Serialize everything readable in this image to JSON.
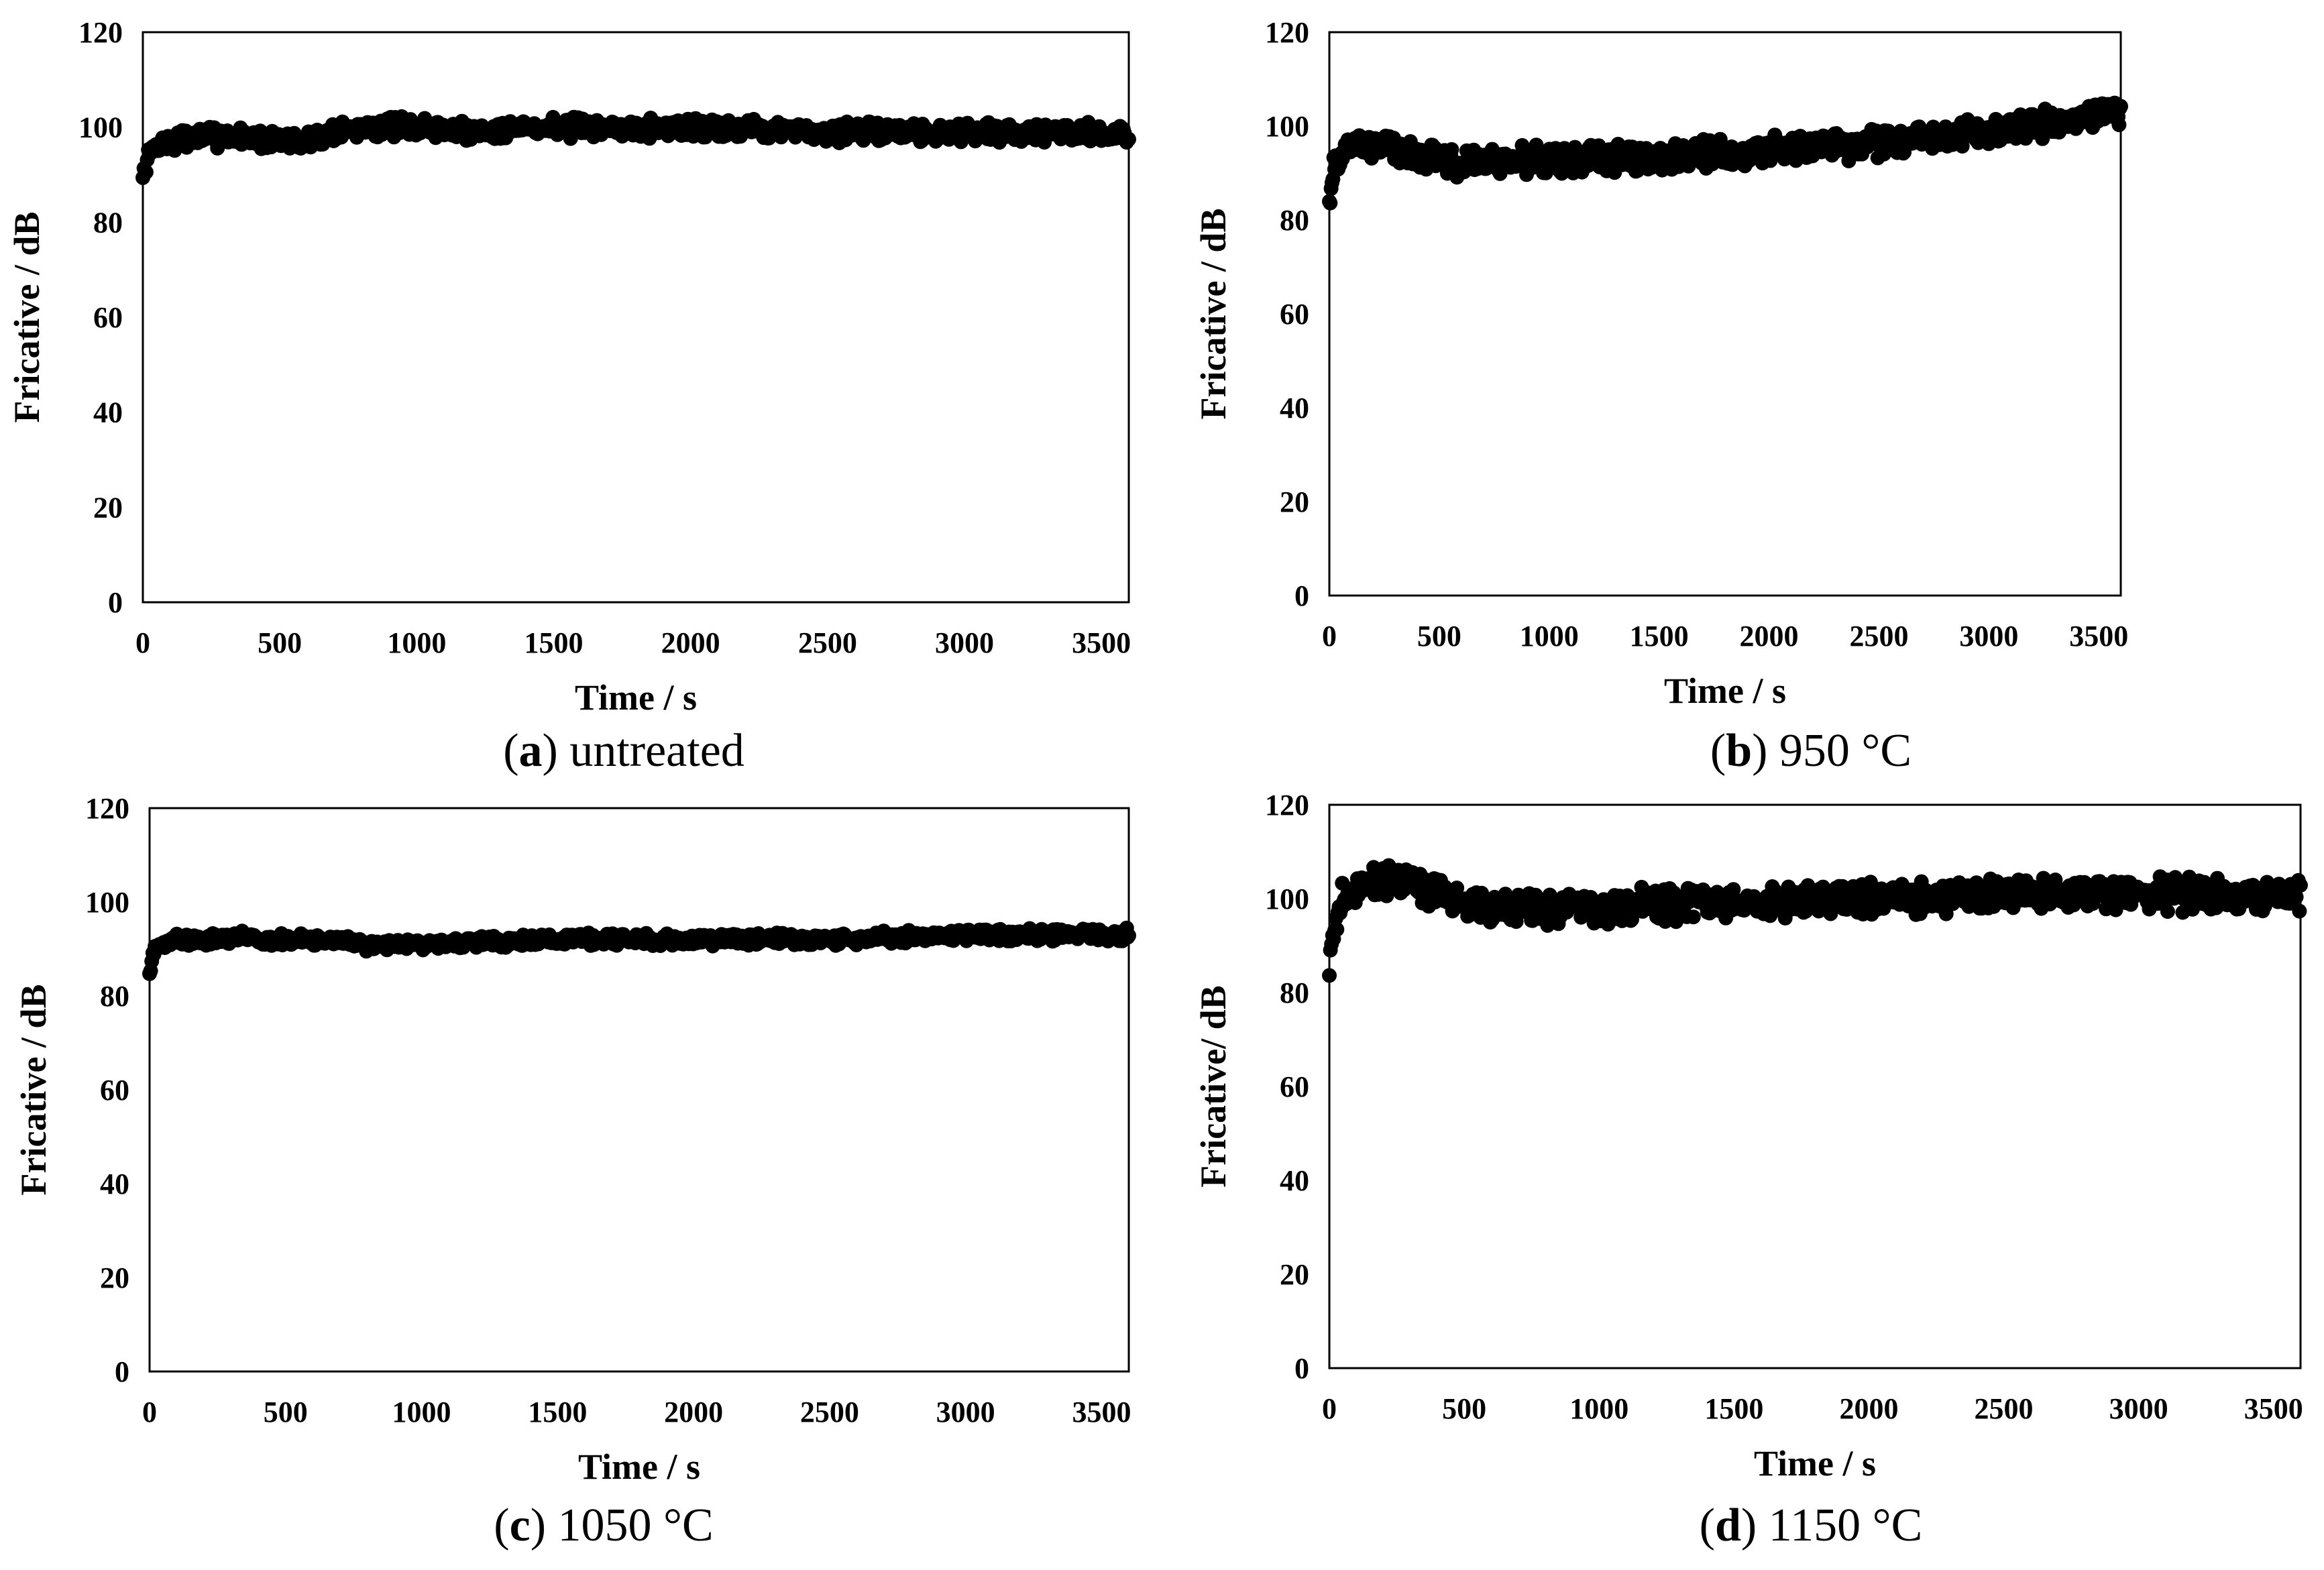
{
  "chart_data": [
    {
      "type": "scatter",
      "panel": "a",
      "title": "untreated",
      "xlabel": "Time / s",
      "ylabel": "Fricative / dB",
      "xlim": [
        0,
        3600
      ],
      "ylim": [
        0,
        120
      ],
      "xticks": [
        0,
        500,
        1000,
        1500,
        2000,
        2500,
        3000,
        3500
      ],
      "yticks": [
        0,
        20,
        40,
        60,
        80,
        100,
        120
      ],
      "grid": false,
      "series": [
        {
          "name": "untreated",
          "x": [
            0,
            20,
            50,
            100,
            200,
            300,
            400,
            500,
            600,
            700,
            800,
            900,
            1000,
            1200,
            1400,
            1600,
            1800,
            2000,
            2200,
            2400,
            2600,
            2800,
            3000,
            3200,
            3400,
            3500,
            3600
          ],
          "y": [
            89,
            94,
            96,
            97,
            98,
            98,
            98,
            97,
            97,
            99,
            100,
            100,
            100,
            99,
            100,
            100,
            100,
            100,
            100,
            99,
            99,
            99,
            99,
            99,
            99,
            99,
            98
          ],
          "spread": 2.5
        }
      ]
    },
    {
      "type": "scatter",
      "panel": "b",
      "title": "950 °C",
      "xlabel": "Time / s",
      "ylabel": "Fricative / dB",
      "xlim": [
        0,
        3600
      ],
      "ylim": [
        0,
        120
      ],
      "xticks": [
        0,
        500,
        1000,
        1500,
        2000,
        2500,
        3000,
        3500
      ],
      "yticks": [
        0,
        20,
        40,
        60,
        80,
        100,
        120
      ],
      "grid": false,
      "series": [
        {
          "name": "950 °C",
          "x": [
            0,
            20,
            50,
            100,
            200,
            300,
            400,
            500,
            600,
            800,
            1000,
            1200,
            1400,
            1600,
            1800,
            2000,
            2200,
            2400,
            2600,
            2800,
            3000,
            3200,
            3400,
            3600
          ],
          "y": [
            84,
            90,
            94,
            96,
            96,
            95,
            94,
            93,
            92,
            93,
            93,
            93,
            93,
            94,
            94,
            95,
            95,
            96,
            97,
            98,
            99,
            100,
            101,
            103
          ],
          "spread": 3.5
        }
      ]
    },
    {
      "type": "scatter",
      "panel": "c",
      "title": "1050 °C",
      "xlabel": "Time / s",
      "ylabel": "Fricative / dB",
      "xlim": [
        0,
        3600
      ],
      "ylim": [
        0,
        120
      ],
      "xticks": [
        0,
        500,
        1000,
        1500,
        2000,
        2500,
        3000,
        3500
      ],
      "yticks": [
        0,
        20,
        40,
        60,
        80,
        100,
        120
      ],
      "grid": false,
      "series": [
        {
          "name": "1050 °C",
          "x": [
            0,
            20,
            50,
            100,
            200,
            300,
            350,
            400,
            500,
            600,
            800,
            1000,
            1500,
            2000,
            2500,
            3000,
            3500,
            3600
          ],
          "y": [
            85,
            90,
            91,
            92,
            92,
            92,
            93,
            92,
            92,
            92,
            91,
            91,
            92,
            92,
            92,
            93,
            93,
            93
          ],
          "spread": 1.5
        }
      ]
    },
    {
      "type": "scatter",
      "panel": "d",
      "title": "1150 °C",
      "xlabel": "Time / s",
      "ylabel": "Fricative/ dB",
      "xlim": [
        0,
        3600
      ],
      "ylim": [
        0,
        120
      ],
      "xticks": [
        0,
        500,
        1000,
        1500,
        2000,
        2500,
        3000,
        3500
      ],
      "yticks": [
        0,
        20,
        40,
        60,
        80,
        100,
        120
      ],
      "grid": false,
      "series": [
        {
          "name": "1150 °C",
          "x": [
            0,
            20,
            50,
            100,
            200,
            300,
            400,
            500,
            600,
            800,
            1000,
            1200,
            1400,
            1600,
            1800,
            2000,
            2500,
            3000,
            3500,
            3600
          ],
          "y": [
            85,
            94,
            100,
            103,
            104,
            103,
            101,
            99,
            98,
            98,
            98,
            99,
            99,
            99,
            100,
            100,
            101,
            101,
            101,
            101
          ],
          "spread": 4
        }
      ]
    }
  ],
  "captions": [
    {
      "letter": "a",
      "rest": ") untreated"
    },
    {
      "letter": "b",
      "rest": ") 950 °C"
    },
    {
      "letter": "c",
      "rest": ") 1050 °C"
    },
    {
      "letter": "d",
      "rest": ") 1150 °C"
    }
  ],
  "paren": "(",
  "marker_color": "#000000"
}
